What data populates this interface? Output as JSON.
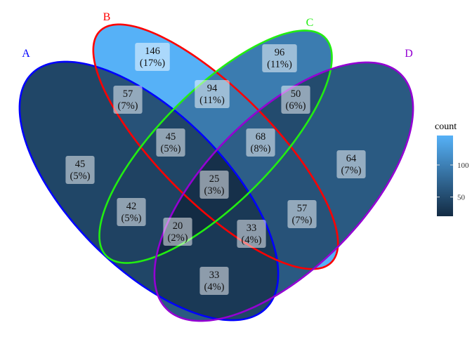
{
  "chart_data": {
    "type": "venn",
    "sets": [
      {
        "name": "A",
        "color": "#0000FF"
      },
      {
        "name": "B",
        "color": "#FF0000"
      },
      {
        "name": "C",
        "color": "#22EE11"
      },
      {
        "name": "D",
        "color": "#9400D3"
      }
    ],
    "regions": [
      {
        "id": "A",
        "count": "45",
        "percent": "(5%)"
      },
      {
        "id": "B",
        "count": "146",
        "percent": "(17%)"
      },
      {
        "id": "C",
        "count": "96",
        "percent": "(11%)"
      },
      {
        "id": "D",
        "count": "64",
        "percent": "(7%)"
      },
      {
        "id": "AB",
        "count": "57",
        "percent": "(7%)"
      },
      {
        "id": "BC",
        "count": "94",
        "percent": "(11%)"
      },
      {
        "id": "CD",
        "count": "50",
        "percent": "(6%)"
      },
      {
        "id": "AC",
        "count": "42",
        "percent": "(5%)"
      },
      {
        "id": "BD",
        "count": "57",
        "percent": "(7%)"
      },
      {
        "id": "AD",
        "count": "33",
        "percent": "(4%)"
      },
      {
        "id": "ABC",
        "count": "45",
        "percent": "(5%)"
      },
      {
        "id": "BCD",
        "count": "68",
        "percent": "(8%)"
      },
      {
        "id": "ACD",
        "count": "20",
        "percent": "(2%)"
      },
      {
        "id": "ABD",
        "count": "33",
        "percent": "(4%)"
      },
      {
        "id": "ABCD",
        "count": "25",
        "percent": "(3%)"
      }
    ],
    "legend": {
      "title": "count",
      "ticks": [
        "50",
        "100"
      ],
      "range": [
        20,
        146
      ],
      "low_color": "#132B43",
      "high_color": "#56B1F7",
      "placement": "right"
    }
  }
}
